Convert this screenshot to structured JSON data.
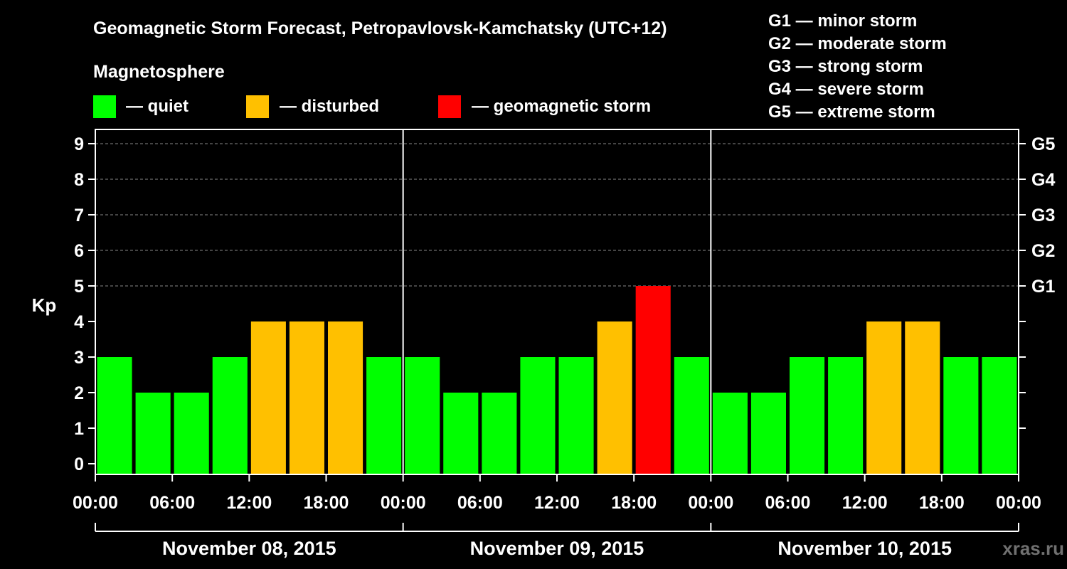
{
  "chart_data": {
    "type": "bar",
    "title": "Geomagnetic Storm Forecast, Petropavlovsk-Kamchatsky (UTC+12)",
    "ylabel": "Kp",
    "ylim": [
      0,
      9
    ],
    "yticks": [
      "0",
      "1",
      "2",
      "3",
      "4",
      "5",
      "6",
      "7",
      "8",
      "9"
    ],
    "right_ticks": [
      {
        "kp": 5,
        "label": "G1"
      },
      {
        "kp": 6,
        "label": "G2"
      },
      {
        "kp": 7,
        "label": "G3"
      },
      {
        "kp": 8,
        "label": "G4"
      },
      {
        "kp": 9,
        "label": "G5"
      }
    ],
    "xticks": [
      "00:00",
      "06:00",
      "12:00",
      "18:00",
      "00:00",
      "06:00",
      "12:00",
      "18:00",
      "00:00",
      "06:00",
      "12:00",
      "18:00",
      "00:00"
    ],
    "days": [
      "November 08, 2015",
      "November 09, 2015",
      "November 10, 2015"
    ],
    "values": [
      3,
      2,
      2,
      3,
      4,
      4,
      4,
      3,
      3,
      2,
      2,
      3,
      3,
      4,
      5,
      3,
      2,
      2,
      3,
      3,
      4,
      4,
      3,
      3
    ],
    "levels": [
      "quiet",
      "quiet",
      "quiet",
      "quiet",
      "disturbed",
      "disturbed",
      "disturbed",
      "quiet",
      "quiet",
      "quiet",
      "quiet",
      "quiet",
      "quiet",
      "disturbed",
      "storm",
      "quiet",
      "quiet",
      "quiet",
      "quiet",
      "quiet",
      "disturbed",
      "disturbed",
      "quiet",
      "quiet"
    ],
    "colors": {
      "quiet": "#00ff00",
      "disturbed": "#ffc000",
      "storm": "#ff0000"
    },
    "legend_title": "Magnetosphere",
    "legend": [
      {
        "key": "quiet",
        "label": "— quiet"
      },
      {
        "key": "disturbed",
        "label": "— disturbed"
      },
      {
        "key": "storm",
        "label": "— geomagnetic storm"
      }
    ],
    "storm_scale": [
      "G1 — minor storm",
      "G2 — moderate storm",
      "G3 — strong storm",
      "G4 — severe storm",
      "G5 — extreme storm"
    ],
    "watermark": "xras.ru",
    "grid": true
  }
}
